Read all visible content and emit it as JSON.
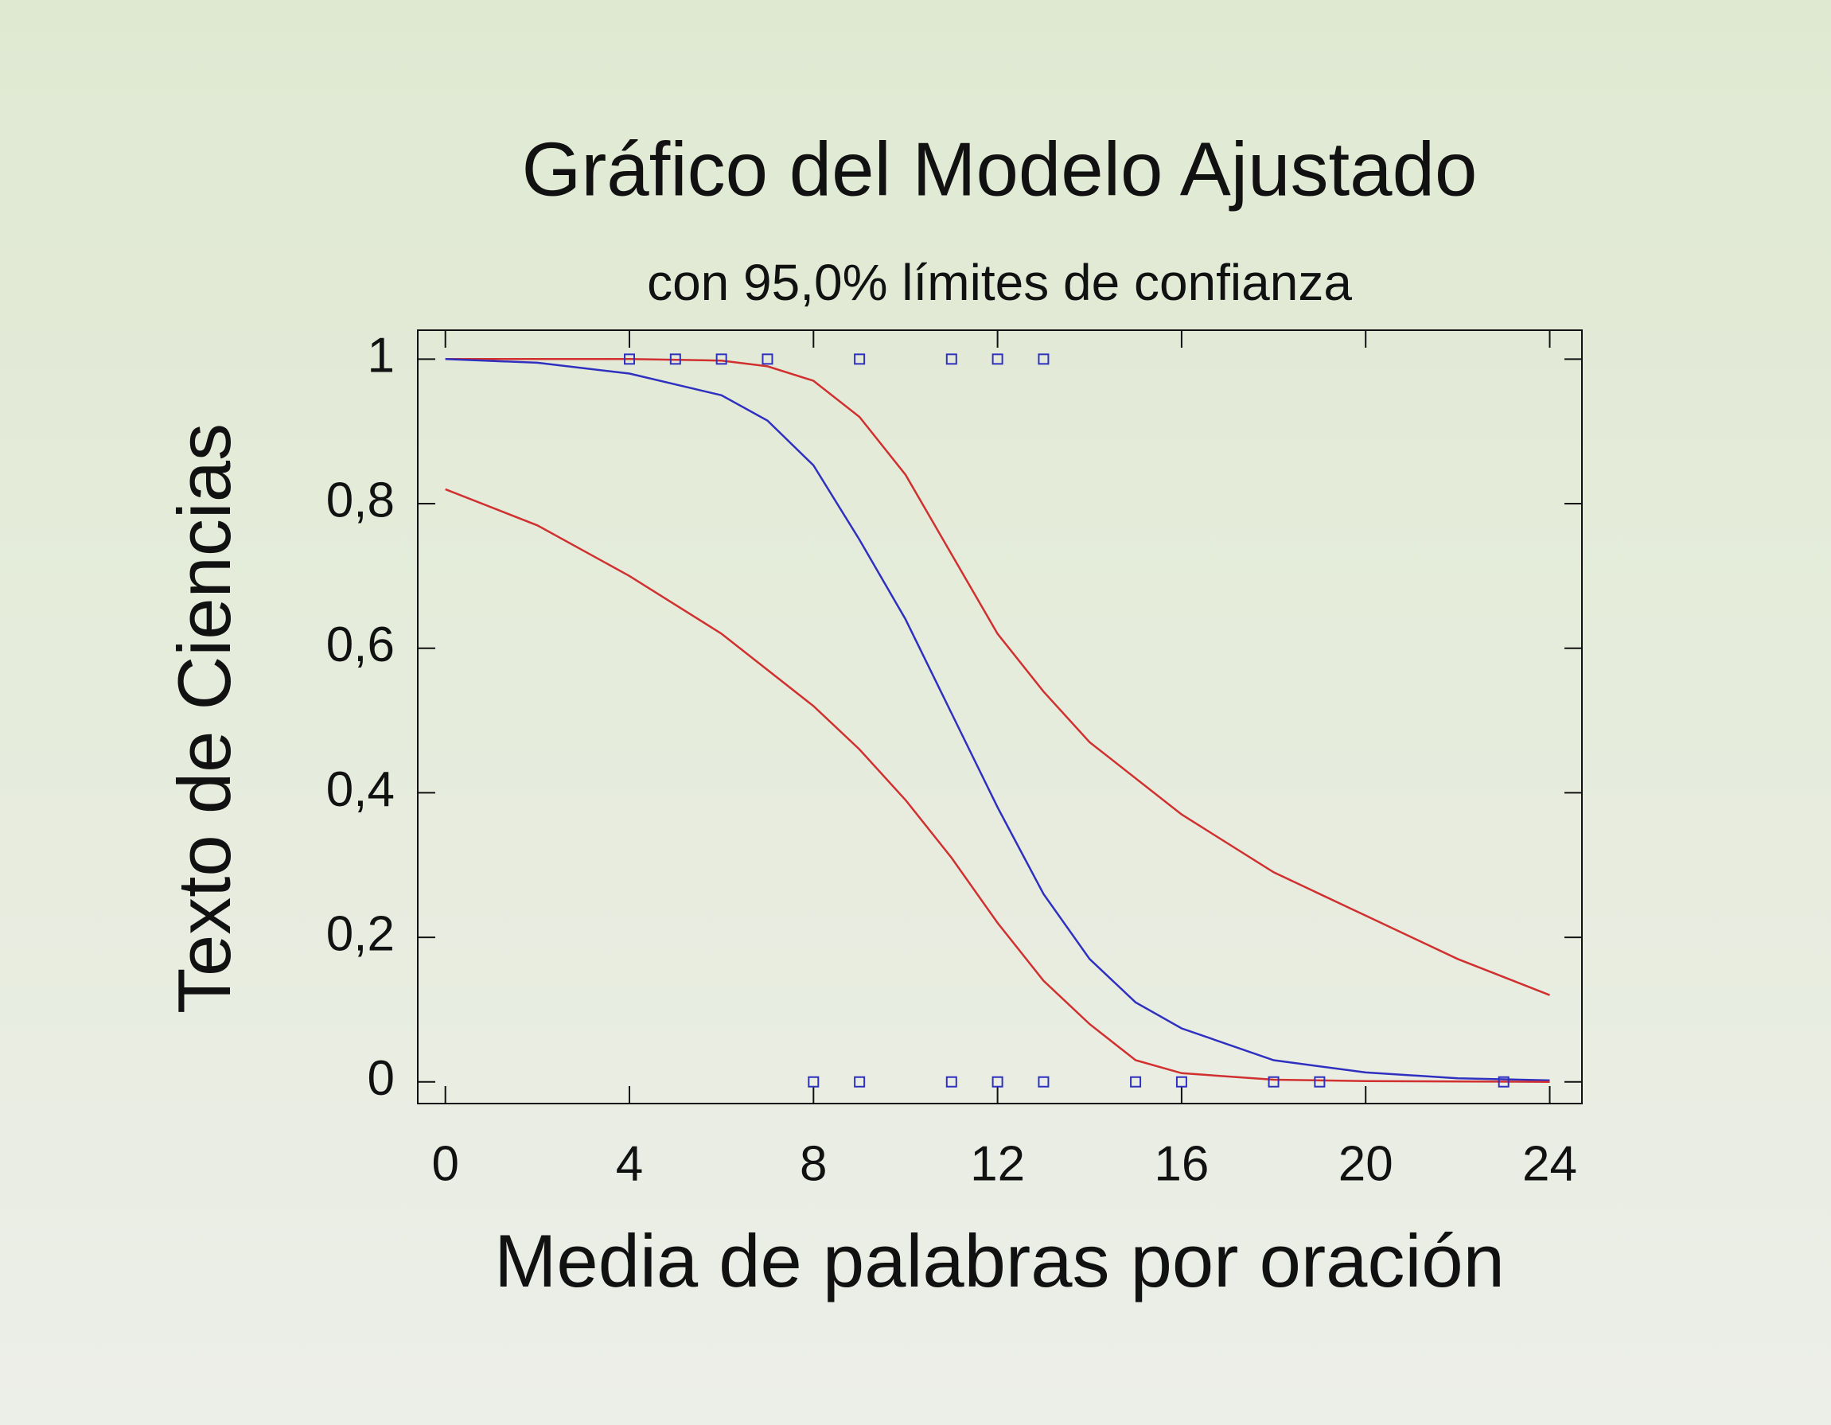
{
  "chart_data": {
    "type": "line",
    "title": "Gráfico del Modelo Ajustado",
    "subtitle": "con  95,0% límites de confianza",
    "x_label": "Media de palabras por oración",
    "y_label": "Texto de Ciencias",
    "xlim": [
      -0.6,
      24.7
    ],
    "ylim": [
      -0.03,
      1.04
    ],
    "xticks": [
      0,
      4,
      8,
      12,
      16,
      20,
      24
    ],
    "yticks": [
      0,
      {
        "value": 0.2,
        "label": "0,2"
      },
      {
        "value": 0.4,
        "label": "0,4"
      },
      {
        "value": 0.6,
        "label": "0,6"
      },
      {
        "value": 0.8,
        "label": "0,8"
      },
      1
    ],
    "series": [
      {
        "mode": "lines",
        "color": "#d03030",
        "x": [
          0,
          2,
          4,
          6,
          7,
          8,
          9,
          10,
          11,
          12,
          13,
          14,
          16,
          18,
          20,
          22,
          24
        ],
        "values": [
          1.0,
          1.0,
          1.0,
          0.998,
          0.99,
          0.97,
          0.92,
          0.84,
          0.73,
          0.62,
          0.54,
          0.47,
          0.37,
          0.29,
          0.23,
          0.17,
          0.12
        ]
      },
      {
        "mode": "lines",
        "color": "#3030c0",
        "x": [
          0,
          2,
          4,
          6,
          7,
          8,
          9,
          10,
          11,
          12,
          13,
          14,
          15,
          16,
          18,
          20,
          22,
          24
        ],
        "values": [
          1.0,
          0.995,
          0.98,
          0.95,
          0.915,
          0.853,
          0.75,
          0.64,
          0.51,
          0.38,
          0.26,
          0.17,
          0.11,
          0.074,
          0.03,
          0.013,
          0.005,
          0.002
        ]
      },
      {
        "mode": "lines",
        "color": "#d03030",
        "x": [
          0,
          2,
          4,
          6,
          8,
          9,
          10,
          11,
          12,
          13,
          14,
          15,
          16,
          18,
          20,
          24
        ],
        "values": [
          0.82,
          0.77,
          0.7,
          0.62,
          0.52,
          0.46,
          0.39,
          0.31,
          0.22,
          0.14,
          0.08,
          0.03,
          0.012,
          0.003,
          0.001,
          0
        ]
      },
      {
        "mode": "markers",
        "color": "#3030c0",
        "x": [
          4,
          5,
          6,
          7,
          9,
          11,
          12,
          13,
          8,
          9,
          11,
          12,
          13,
          15,
          16,
          18,
          19,
          23
        ],
        "values": [
          1,
          1,
          1,
          1,
          1,
          1,
          1,
          1,
          0,
          0,
          0,
          0,
          0,
          0,
          0,
          0,
          0,
          0
        ]
      }
    ]
  }
}
